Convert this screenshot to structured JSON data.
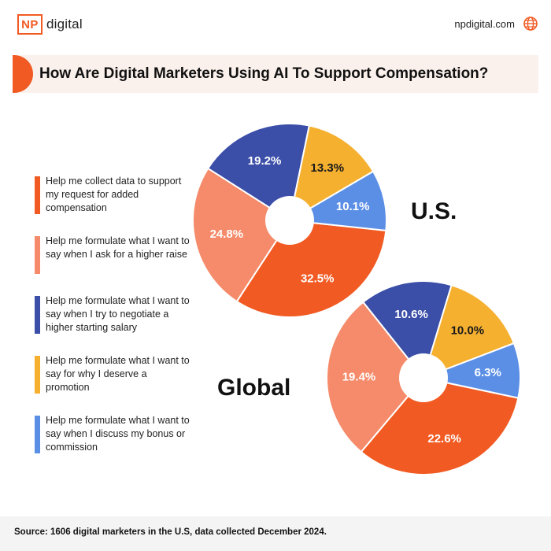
{
  "header": {
    "logo_box": "NP",
    "logo_text": "digital",
    "site": "npdigital.com"
  },
  "title": "How Are Digital Marketers Using AI To Support Compensation?",
  "legend": [
    {
      "label": "Help me collect data to support my request for added compensation",
      "color": "#f15a22"
    },
    {
      "label": "Help me formulate what I want to say when I ask for a higher raise",
      "color": "#f58b6a"
    },
    {
      "label": "Help me formulate what I want to say when I try to negotiate a higher starting salary",
      "color": "#3b4ea8"
    },
    {
      "label": "Help me formulate what I want to say for why I deserve a promotion",
      "color": "#f5b030"
    },
    {
      "label": "Help me formulate what I want to say when I discuss my bonus or commission",
      "color": "#5b8fe6"
    }
  ],
  "chart_data": [
    {
      "type": "pie",
      "name": "U.S.",
      "categories": [
        "Help me collect data to support my request for added compensation",
        "Help me formulate what I want to say when I ask for a higher raise",
        "Help me formulate what I want to say when I try to negotiate a higher starting salary",
        "Help me formulate what I want to say for why I deserve a promotion",
        "Help me formulate what I want to say when I discuss my bonus or commission"
      ],
      "values": [
        32.5,
        24.8,
        19.2,
        13.3,
        10.1
      ],
      "labels": [
        "32.5%",
        "24.8%",
        "19.2%",
        "13.3%",
        "10.1%"
      ],
      "colors": [
        "#f15a22",
        "#f58b6a",
        "#3b4ea8",
        "#f5b030",
        "#5b8fe6"
      ],
      "label_colors": [
        "#ffffff",
        "#ffffff",
        "#ffffff",
        "#1a1a1a",
        "#ffffff"
      ]
    },
    {
      "type": "pie",
      "name": "Global",
      "categories": [
        "Help me collect data to support my request for added compensation",
        "Help me formulate what I want to say when I ask for a higher raise",
        "Help me formulate what I want to say when I try to negotiate a higher starting salary",
        "Help me formulate what I want to say for why I deserve a promotion",
        "Help me formulate what I want to say when I discuss my bonus or commission"
      ],
      "values": [
        22.6,
        19.4,
        10.6,
        10.0,
        6.3
      ],
      "labels": [
        "22.6%",
        "19.4%",
        "10.6%",
        "10.0%",
        "6.3%"
      ],
      "colors": [
        "#f15a22",
        "#f58b6a",
        "#3b4ea8",
        "#f5b030",
        "#5b8fe6"
      ],
      "label_colors": [
        "#ffffff",
        "#ffffff",
        "#ffffff",
        "#1a1a1a",
        "#ffffff"
      ]
    }
  ],
  "footer": "Source: 1606 digital marketers in the U.S, data collected December 2024."
}
